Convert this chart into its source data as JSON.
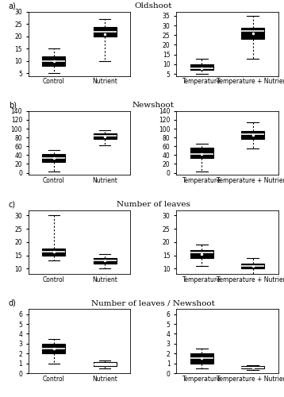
{
  "panels": [
    {
      "label": "a)",
      "title": "Oldshoot",
      "left": {
        "cats": [
          "Control",
          "Nutrient"
        ],
        "boxes": [
          {
            "whislo": 5,
            "q1": 8,
            "med": 10,
            "q3": 12,
            "whishi": 15,
            "mean": 10,
            "fliers": []
          },
          {
            "whislo": 10,
            "q1": 20,
            "med": 22,
            "q3": 24,
            "whishi": 27,
            "mean": 21,
            "fliers": []
          }
        ],
        "ylim": [
          4,
          30
        ],
        "yticks": [
          5,
          10,
          15,
          20,
          25,
          30
        ],
        "filled": [
          true,
          true
        ]
      },
      "right": {
        "cats": [
          "Temperature",
          "Temperature + Nutrient"
        ],
        "boxes": [
          {
            "whislo": 5,
            "q1": 7,
            "med": 8,
            "q3": 10,
            "whishi": 13,
            "mean": 8,
            "fliers": []
          },
          {
            "whislo": 13,
            "q1": 23,
            "med": 27,
            "q3": 29,
            "whishi": 35,
            "mean": 26,
            "fliers": []
          }
        ],
        "ylim": [
          4,
          37
        ],
        "yticks": [
          5,
          10,
          15,
          20,
          25,
          30,
          35
        ],
        "filled": [
          true,
          true
        ]
      }
    },
    {
      "label": "b)",
      "title": "Newshoot",
      "left": {
        "cats": [
          "Control",
          "Nutrient"
        ],
        "boxes": [
          {
            "whislo": 2,
            "q1": 25,
            "med": 33,
            "q3": 42,
            "whishi": 52,
            "mean": 33,
            "fliers": []
          },
          {
            "whislo": 62,
            "q1": 76,
            "med": 83,
            "q3": 90,
            "whishi": 96,
            "mean": 82,
            "fliers": []
          }
        ],
        "ylim": [
          -5,
          140
        ],
        "yticks": [
          0,
          20,
          40,
          60,
          80,
          100,
          120,
          140
        ],
        "filled": [
          true,
          true
        ]
      },
      "right": {
        "cats": [
          "Temperature",
          "Temperature + Nutrient"
        ],
        "boxes": [
          {
            "whislo": 2,
            "q1": 33,
            "med": 43,
            "q3": 56,
            "whishi": 66,
            "mean": 43,
            "fliers": []
          },
          {
            "whislo": 55,
            "q1": 76,
            "med": 87,
            "q3": 95,
            "whishi": 115,
            "mean": 86,
            "fliers": []
          }
        ],
        "ylim": [
          -5,
          140
        ],
        "yticks": [
          0,
          20,
          40,
          60,
          80,
          100,
          120,
          140
        ],
        "filled": [
          true,
          true
        ]
      }
    },
    {
      "label": "c)",
      "title": "Number of leaves",
      "left": {
        "cats": [
          "Control",
          "Nutrient"
        ],
        "boxes": [
          {
            "whislo": 13,
            "q1": 15,
            "med": 16.5,
            "q3": 17.5,
            "whishi": 30,
            "mean": 16.5,
            "fliers": []
          },
          {
            "whislo": 10,
            "q1": 12,
            "med": 13,
            "q3": 14,
            "whishi": 15.5,
            "mean": 13,
            "fliers": []
          }
        ],
        "ylim": [
          8,
          32
        ],
        "yticks": [
          10,
          15,
          20,
          25,
          30
        ],
        "filled": [
          true,
          true
        ]
      },
      "right": {
        "cats": [
          "Temperature",
          "Temperature + Nutrient"
        ],
        "boxes": [
          {
            "whislo": 11,
            "q1": 14,
            "med": 16,
            "q3": 17,
            "whishi": 19,
            "mean": 15.5,
            "fliers": []
          },
          {
            "whislo": 8,
            "q1": 10,
            "med": 11,
            "q3": 12,
            "whishi": 14,
            "mean": 11,
            "fliers": []
          }
        ],
        "ylim": [
          8,
          32
        ],
        "yticks": [
          10,
          15,
          20,
          25,
          30
        ],
        "filled": [
          true,
          true
        ]
      }
    },
    {
      "label": "d)",
      "title": "Number of leaves / Newshoot",
      "left": {
        "cats": [
          "Control",
          "Nutrient"
        ],
        "boxes": [
          {
            "whislo": 1.0,
            "q1": 2.0,
            "med": 2.5,
            "q3": 3.0,
            "whishi": 3.5,
            "mean": 2.5,
            "fliers": []
          },
          {
            "whislo": 0.5,
            "q1": 0.7,
            "med": 0.9,
            "q3": 1.1,
            "whishi": 1.3,
            "mean": 0.9,
            "fliers": []
          }
        ],
        "ylim": [
          0,
          6.5
        ],
        "yticks": [
          0,
          1,
          2,
          3,
          4,
          5,
          6
        ],
        "filled": [
          true,
          false
        ]
      },
      "right": {
        "cats": [
          "Temperature",
          "Temperature + Nutrient"
        ],
        "boxes": [
          {
            "whislo": 0.5,
            "q1": 1.0,
            "med": 1.5,
            "q3": 2.0,
            "whishi": 2.5,
            "mean": 1.5,
            "fliers": []
          },
          {
            "whislo": 0.3,
            "q1": 0.5,
            "med": 0.6,
            "q3": 0.7,
            "whishi": 0.8,
            "mean": 0.6,
            "fliers": []
          }
        ],
        "ylim": [
          0,
          6.5
        ],
        "yticks": [
          0,
          1,
          2,
          3,
          4,
          5,
          6
        ],
        "filled": [
          true,
          false
        ]
      }
    }
  ],
  "bg_color": "#ffffff",
  "linewidth": 0.8,
  "title_fontsize": 7.5,
  "label_fontsize": 7,
  "tick_fontsize": 5.5,
  "box_width": 0.45
}
